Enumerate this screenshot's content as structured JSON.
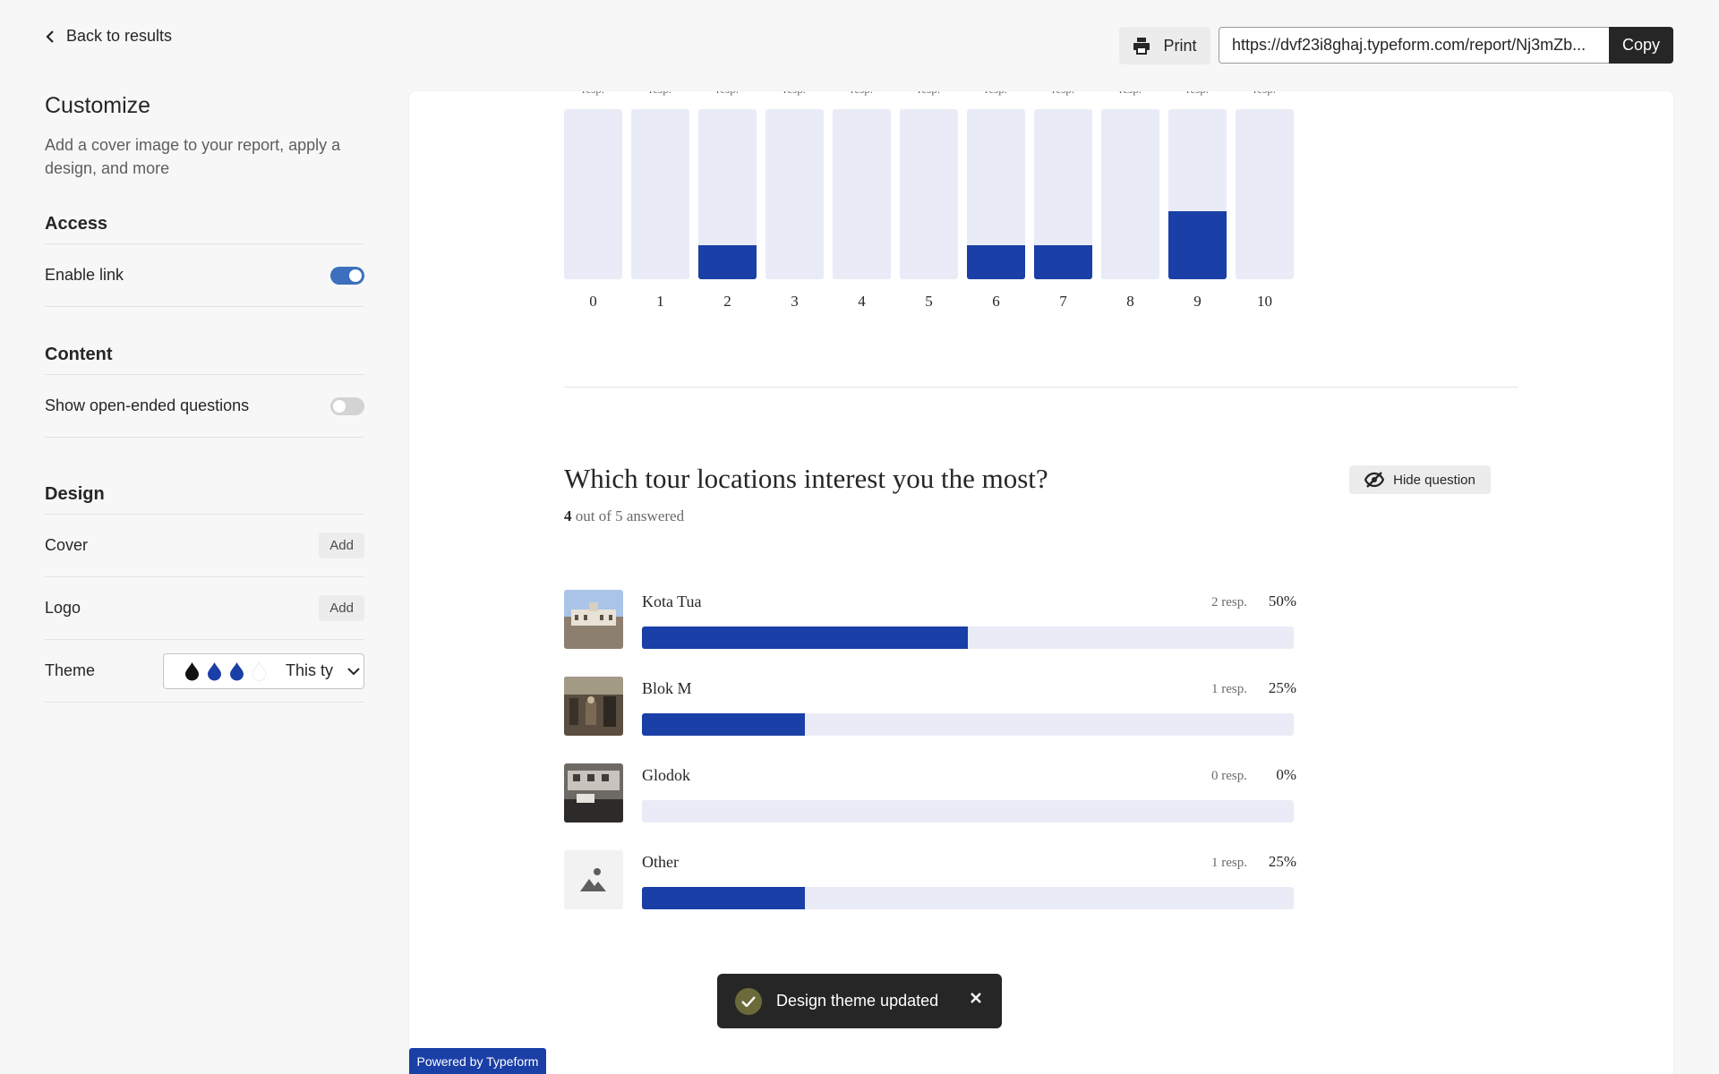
{
  "nav": {
    "back_label": "Back to results"
  },
  "sidebar": {
    "title": "Customize",
    "subtitle": "Add a cover image to your report, apply a design, and more",
    "access": {
      "heading": "Access",
      "enable_link_label": "Enable link",
      "enable_link_on": true
    },
    "content": {
      "heading": "Content",
      "open_ended_label": "Show open-ended questions",
      "open_ended_on": false
    },
    "design": {
      "heading": "Design",
      "cover_label": "Cover",
      "cover_button": "Add",
      "logo_label": "Logo",
      "logo_button": "Add",
      "theme_label": "Theme",
      "theme_value": "This ty",
      "theme_colors": [
        "#111111",
        "#1a3fa6",
        "#1a3fa6",
        "#ffffff"
      ]
    }
  },
  "toolbar": {
    "print_label": "Print",
    "url_value": "https://dvf23i8ghaj.typeform.com/report/Nj3mZb...",
    "copy_label": "Copy"
  },
  "chart_data": {
    "type": "bar",
    "categories": [
      "0",
      "1",
      "2",
      "3",
      "4",
      "5",
      "6",
      "7",
      "8",
      "9",
      "10"
    ],
    "values": [
      0,
      0,
      1,
      0,
      0,
      0,
      1,
      1,
      0,
      2,
      0
    ],
    "ylim": [
      0,
      5
    ],
    "top_labels": [
      "resp.",
      "resp.",
      "resp.",
      "resp.",
      "resp.",
      "resp.",
      "resp.",
      "resp.",
      "resp.",
      "resp.",
      "resp."
    ],
    "colors": {
      "fill": "#1a3fa6",
      "track": "#e9ebf6"
    }
  },
  "question": {
    "title": "Which tour locations interest you the most?",
    "answered_count": "4",
    "answered_suffix": "out of 5 answered",
    "hide_label": "Hide question",
    "options": [
      {
        "name": "Kota Tua",
        "resp": "2 resp.",
        "pct": "50%",
        "fraction": 0.5,
        "thumb": "kota-tua-photo"
      },
      {
        "name": "Blok M",
        "resp": "1 resp.",
        "pct": "25%",
        "fraction": 0.25,
        "thumb": "blok-m-photo"
      },
      {
        "name": "Glodok",
        "resp": "0 resp.",
        "pct": "0%",
        "fraction": 0,
        "thumb": "glodok-photo"
      },
      {
        "name": "Other",
        "resp": "1 resp.",
        "pct": "25%",
        "fraction": 0.25,
        "thumb": "image-placeholder-icon"
      }
    ]
  },
  "toast": {
    "message": "Design theme updated"
  },
  "footer": {
    "powered_label": "Powered by Typeform"
  }
}
